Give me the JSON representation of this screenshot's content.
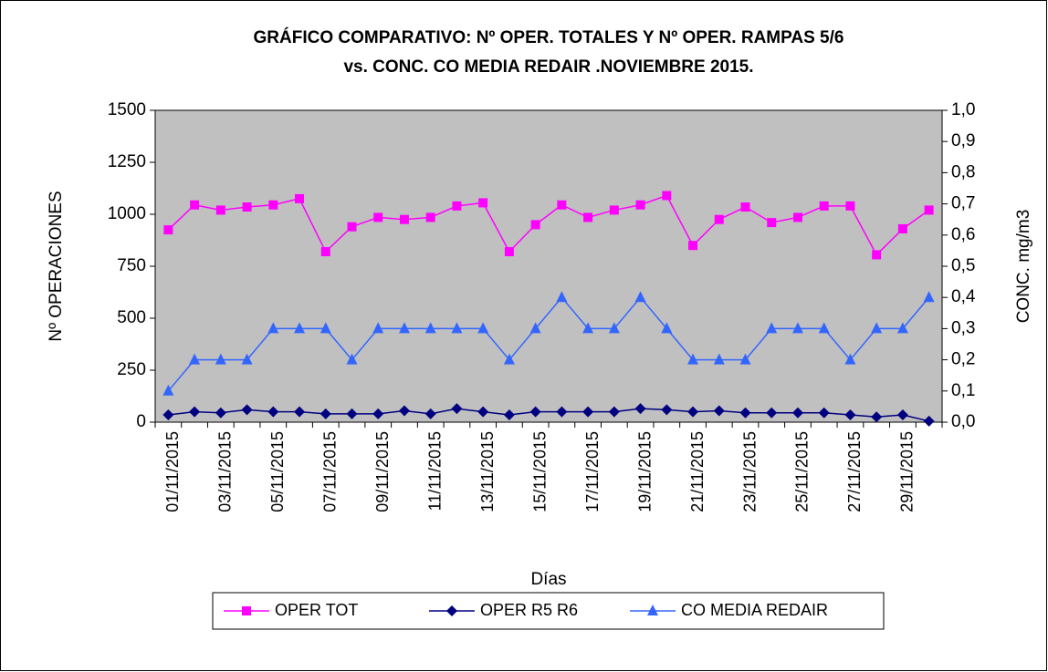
{
  "chart_data": {
    "type": "line",
    "title": [
      "GRÁFICO COMPARATIVO: Nº OPER. TOTALES Y Nº OPER. RAMPAS 5/6",
      "vs. CONC. CO MEDIA REDAIR .NOVIEMBRE 2015."
    ],
    "xlabel": "Días",
    "ylabel": "Nº OPERACIONES",
    "y2label": "CONC. mg/m3",
    "categories": [
      "01/11/2015",
      null,
      "03/11/2015",
      null,
      "05/11/2015",
      null,
      "07/11/2015",
      null,
      "09/11/2015",
      null,
      "11/11/2015",
      null,
      "13/11/2015",
      null,
      "15/11/2015",
      null,
      "17/11/2015",
      null,
      "19/11/2015",
      null,
      "21/11/2015",
      null,
      "23/11/2015",
      null,
      "25/11/2015",
      null,
      "27/11/2015",
      null,
      "29/11/2015",
      null
    ],
    "series": [
      {
        "name": "OPER TOT",
        "color": "#ff00ff",
        "marker": "square",
        "values": [
          925,
          1045,
          1020,
          1035,
          1045,
          1075,
          820,
          940,
          985,
          975,
          985,
          1040,
          1055,
          820,
          950,
          1045,
          985,
          1020,
          1045,
          1090,
          850,
          975,
          1035,
          960,
          985,
          1040,
          1040,
          805,
          930,
          1020
        ]
      },
      {
        "name": "OPER R5 R6",
        "color": "#000080",
        "marker": "diamond",
        "values": [
          35,
          50,
          45,
          60,
          50,
          50,
          40,
          40,
          40,
          55,
          40,
          65,
          50,
          35,
          50,
          50,
          50,
          50,
          65,
          60,
          50,
          55,
          45,
          45,
          45,
          45,
          35,
          25,
          35,
          5
        ]
      },
      {
        "name": "CO MEDIA REDAIR",
        "color": "#3366ff",
        "marker": "triangle",
        "axis": "y2",
        "values": [
          0.1,
          0.2,
          0.2,
          0.2,
          0.3,
          0.3,
          0.3,
          0.2,
          0.3,
          0.3,
          0.3,
          0.3,
          0.3,
          0.2,
          0.3,
          0.4,
          0.3,
          0.3,
          0.4,
          0.3,
          0.2,
          0.2,
          0.2,
          0.3,
          0.3,
          0.3,
          0.2,
          0.3,
          0.3,
          0.4
        ]
      }
    ],
    "ylim": [
      0,
      1500
    ],
    "yticks": [
      0,
      250,
      500,
      750,
      1000,
      1250,
      1500
    ],
    "y2lim": [
      0,
      1.0
    ],
    "y2ticks": [
      {
        "value": 0,
        "label": "0,0"
      },
      {
        "value": 0.1,
        "label": "0,1"
      },
      {
        "value": 0.2,
        "label": "0,2"
      },
      {
        "value": 0.3,
        "label": "0,3"
      },
      {
        "value": 0.4,
        "label": "0,4"
      },
      {
        "value": 0.5,
        "label": "0,5"
      },
      {
        "value": 0.6,
        "label": "0,6"
      },
      {
        "value": 0.7,
        "label": "0,7"
      },
      {
        "value": 0.8,
        "label": "0,8"
      },
      {
        "value": 0.9,
        "label": "0,9"
      },
      {
        "value": 1.0,
        "label": "1,0"
      }
    ],
    "grid": false,
    "legend": "bottom",
    "plot_background": "#c0c0c0"
  }
}
